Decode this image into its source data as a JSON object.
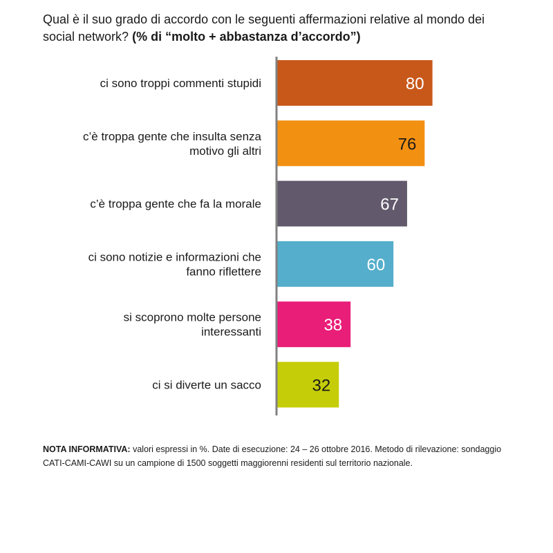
{
  "title": {
    "question": "Qual è il suo grado di accordo con le seguenti affermazioni relative al mondo dei social network?",
    "subtitle": "(% di “molto + abbastanza d’accordo”)"
  },
  "note": {
    "label": "NOTA INFORMATIVA:",
    "text": "valori espressi in %. Date di esecuzione: 24 – 26 ottobre 2016. Metodo di rilevazione: sondaggio CATI-CAMI-CAWI su un campione di 1500 soggetti maggiorenni residenti sul territorio nazionale."
  },
  "chart_data": {
    "type": "bar",
    "orientation": "horizontal",
    "categories": [
      [
        "ci sono troppi commenti stupidi"
      ],
      [
        "c’è troppa gente che insulta senza",
        "motivo gli altri"
      ],
      [
        "c’è troppa gente che fa la morale"
      ],
      [
        "ci sono notizie e informazioni che",
        "fanno riflettere"
      ],
      [
        "si scoprono molte persone",
        "interessanti"
      ],
      [
        "ci si diverte un sacco"
      ]
    ],
    "values": [
      80,
      76,
      67,
      60,
      38,
      32
    ],
    "colors": [
      "#c8581a",
      "#f29011",
      "#625a6c",
      "#55aecb",
      "#e91e79",
      "#c5cd08"
    ],
    "value_label_colors": [
      "#ffffff",
      "#1a1a1a",
      "#ffffff",
      "#ffffff",
      "#ffffff",
      "#1a1a1a"
    ],
    "xlim": [
      0,
      100
    ],
    "grid": false,
    "legend": "none",
    "axis_color": "#808080"
  }
}
